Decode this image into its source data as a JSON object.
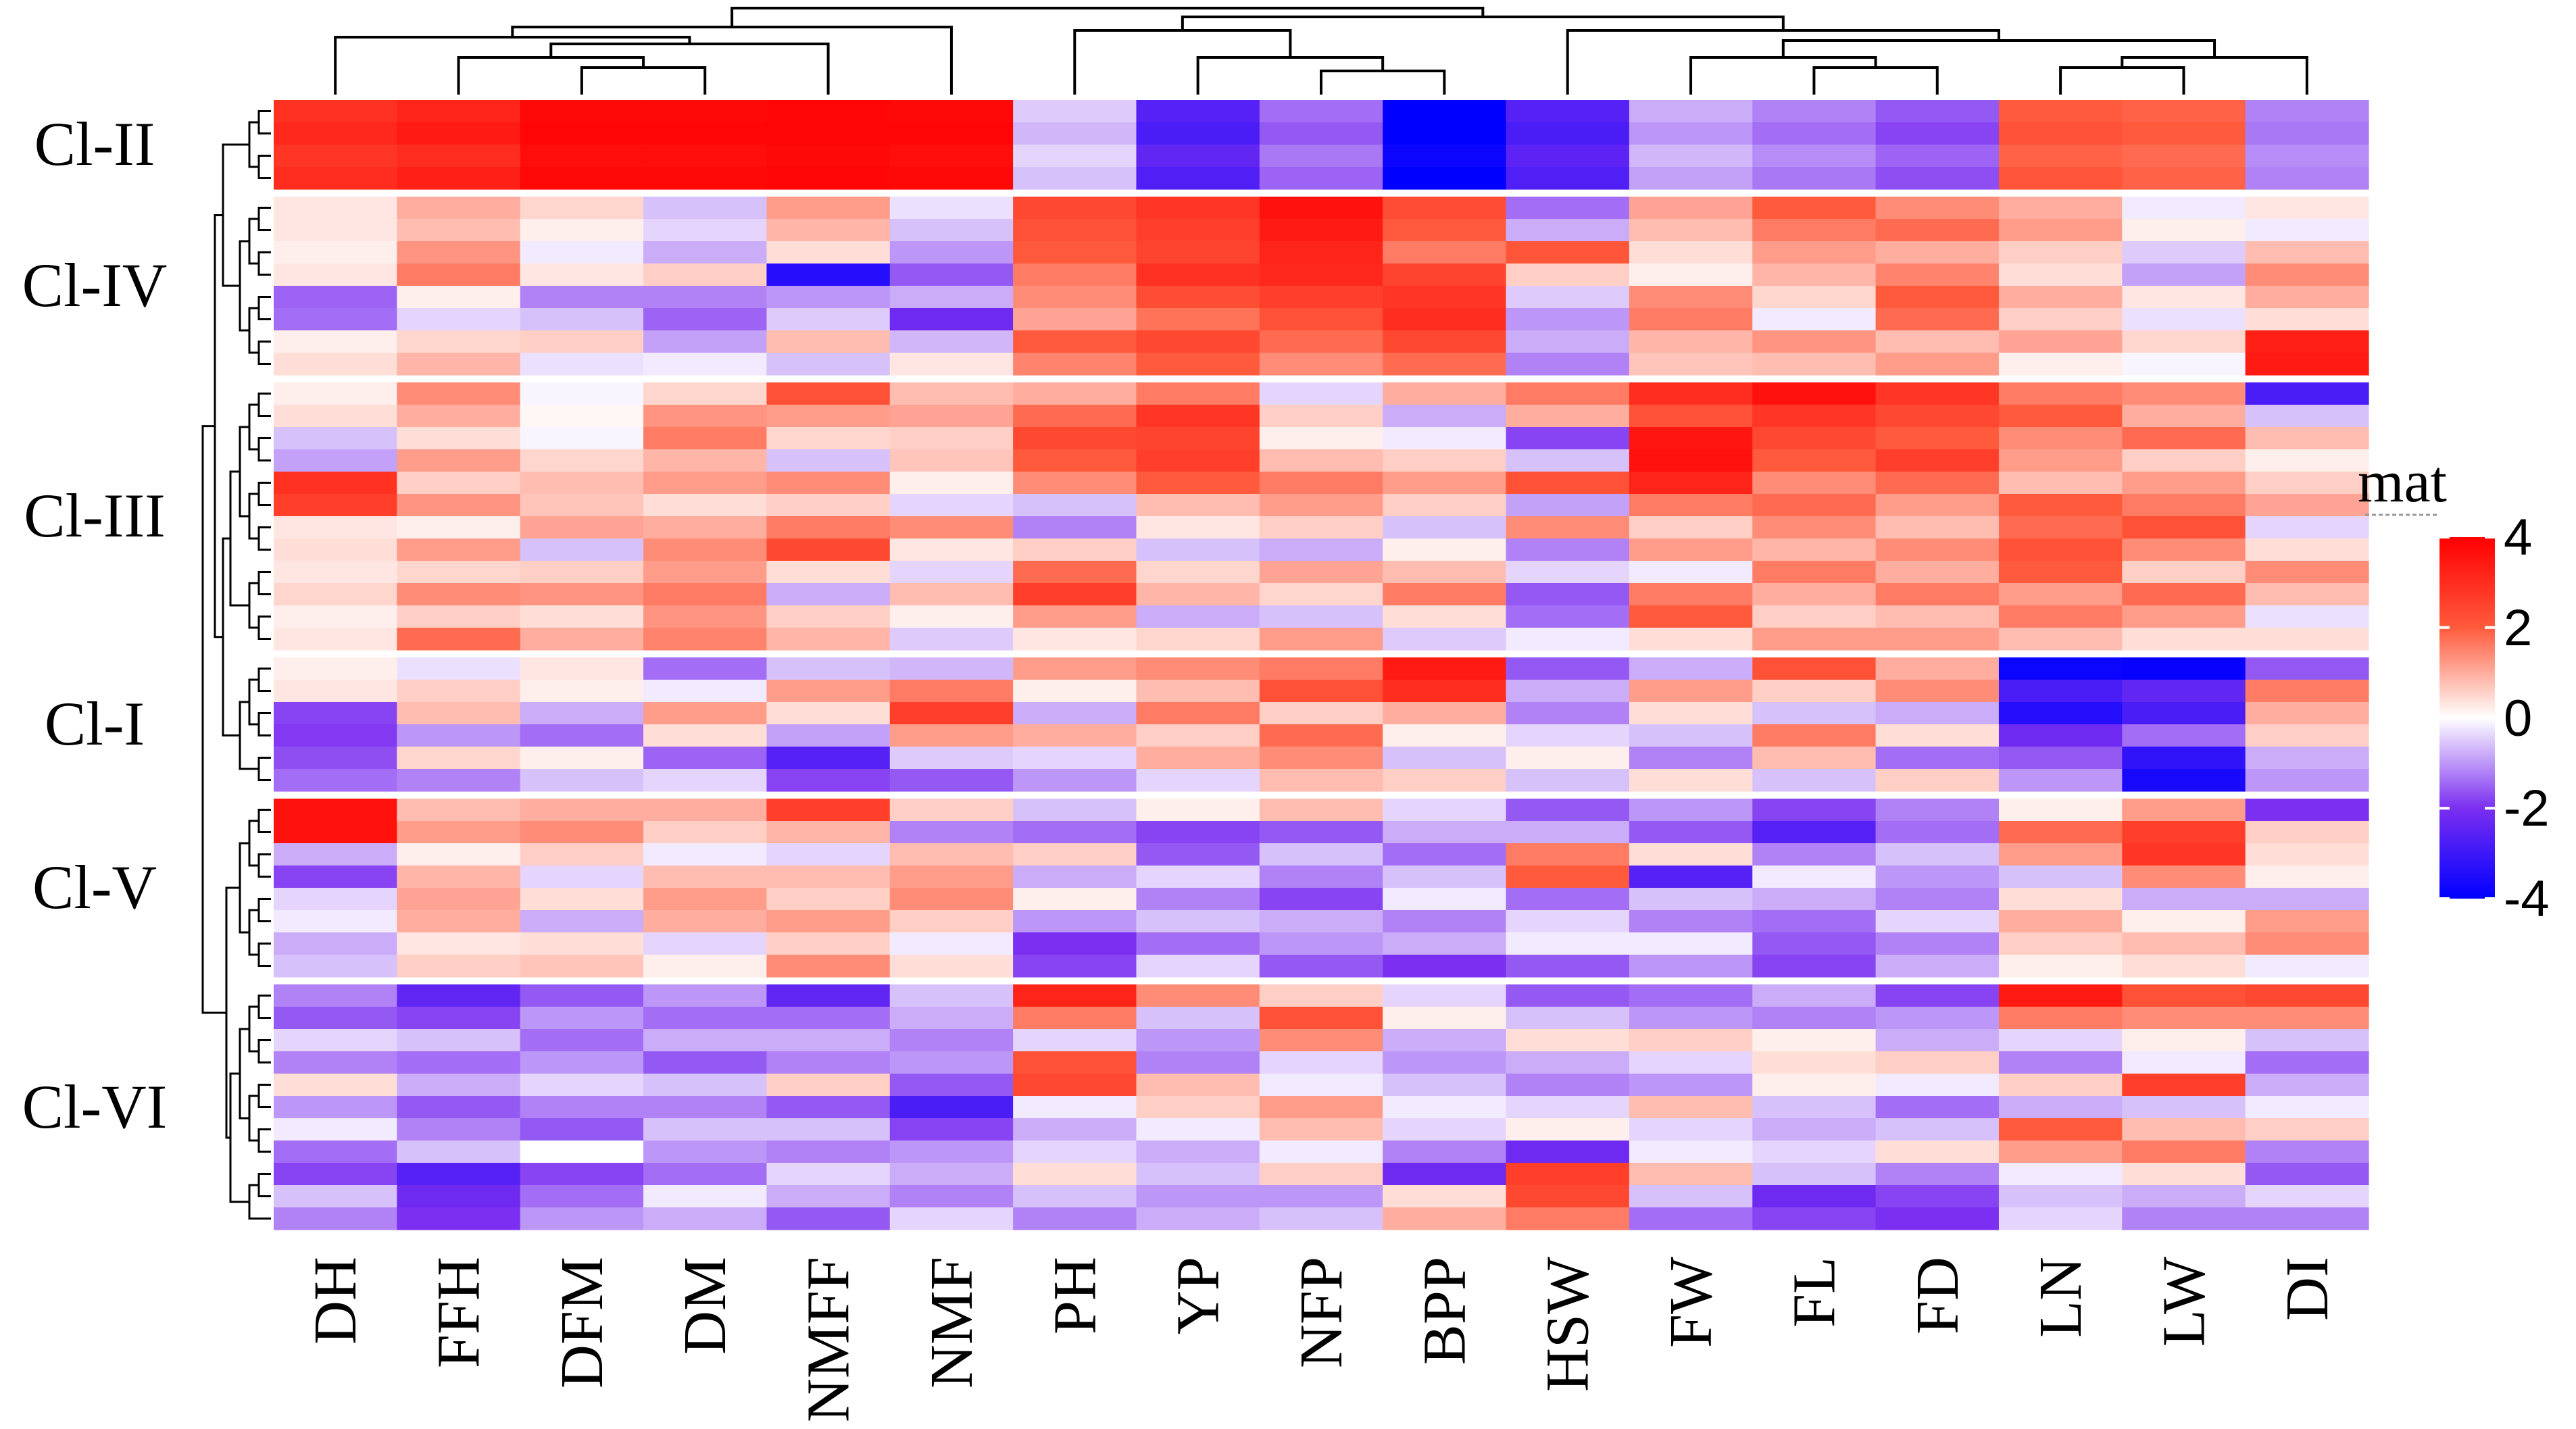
{
  "chart_data": {
    "type": "heatmap",
    "title": "",
    "xlabel": "",
    "ylabel": "",
    "columns": [
      "DH",
      "FFH",
      "DFM",
      "DM",
      "NMFF",
      "NMF",
      "PH",
      "YP",
      "NFP",
      "BPP",
      "HSW",
      "FW",
      "FL",
      "FD",
      "LN",
      "LW",
      "DI"
    ],
    "clusters": [
      {
        "label": "Cl-II",
        "rows": [
          [
            2.9,
            3.2,
            3.8,
            3.8,
            3.9,
            3.8,
            -0.5,
            -2.6,
            -1.4,
            -4.0,
            -2.6,
            -0.8,
            -1.2,
            -1.6,
            2.0,
            1.9,
            -1.2
          ],
          [
            3.1,
            3.4,
            3.9,
            3.9,
            3.9,
            3.9,
            -0.7,
            -2.8,
            -1.6,
            -4.2,
            -2.8,
            -1.0,
            -1.4,
            -1.8,
            2.2,
            2.0,
            -1.3
          ],
          [
            2.8,
            3.0,
            3.7,
            3.7,
            3.8,
            3.7,
            -0.4,
            -2.4,
            -1.3,
            -3.8,
            -2.5,
            -0.7,
            -1.1,
            -1.5,
            1.9,
            1.8,
            -1.1
          ],
          [
            3.0,
            3.3,
            3.8,
            3.8,
            3.9,
            3.8,
            -0.6,
            -2.7,
            -1.5,
            -4.0,
            -2.7,
            -0.9,
            -1.3,
            -1.7,
            2.1,
            1.9,
            -1.2
          ]
        ]
      },
      {
        "label": "Cl-IV",
        "rows": [
          [
            0.3,
            1.0,
            0.5,
            -0.6,
            1.2,
            -0.3,
            2.4,
            2.8,
            3.6,
            2.3,
            -1.4,
            1.1,
            2.0,
            1.4,
            1.0,
            -0.2,
            0.3
          ],
          [
            0.3,
            0.8,
            0.2,
            -0.4,
            0.9,
            -0.6,
            2.2,
            2.6,
            3.4,
            2.0,
            -0.8,
            0.8,
            1.6,
            1.8,
            1.2,
            0.2,
            -0.2
          ],
          [
            0.2,
            1.3,
            -0.2,
            -0.8,
            0.4,
            -1.0,
            2.0,
            2.5,
            3.2,
            1.6,
            2.1,
            0.4,
            1.2,
            1.0,
            0.6,
            -0.5,
            0.8
          ],
          [
            0.3,
            1.6,
            0.3,
            0.6,
            -3.4,
            -1.6,
            1.6,
            2.9,
            3.1,
            2.5,
            0.6,
            0.2,
            0.9,
            1.5,
            0.4,
            -0.9,
            1.4
          ],
          [
            -1.5,
            0.2,
            -1.2,
            -1.2,
            -1.0,
            -0.8,
            1.4,
            2.3,
            2.6,
            2.8,
            -0.5,
            1.4,
            0.5,
            2.0,
            1.0,
            0.3,
            1.0
          ],
          [
            -1.4,
            -0.4,
            -0.6,
            -1.5,
            -0.5,
            -2.2,
            1.1,
            1.7,
            2.2,
            3.0,
            -1.0,
            1.6,
            -0.2,
            1.8,
            0.6,
            -0.3,
            0.4
          ],
          [
            0.2,
            0.5,
            0.6,
            -0.9,
            0.8,
            -0.7,
            2.0,
            2.4,
            1.8,
            2.4,
            -0.8,
            0.9,
            1.3,
            0.8,
            1.1,
            0.5,
            3.3
          ],
          [
            0.4,
            0.9,
            -0.3,
            -0.2,
            -0.6,
            0.3,
            1.5,
            2.0,
            1.4,
            1.8,
            -1.2,
            0.7,
            0.8,
            1.2,
            0.2,
            -0.1,
            3.4
          ]
        ]
      },
      {
        "label": "Cl-III",
        "rows": [
          [
            0.2,
            1.4,
            -0.1,
            0.5,
            2.2,
            0.8,
            1.0,
            1.6,
            -0.4,
            1.0,
            1.6,
            3.0,
            3.6,
            2.8,
            1.6,
            1.4,
            -2.8
          ],
          [
            0.4,
            1.0,
            0.1,
            1.3,
            1.2,
            1.1,
            1.8,
            2.8,
            0.6,
            -0.8,
            1.0,
            2.2,
            2.8,
            2.4,
            2.0,
            1.0,
            -0.6
          ],
          [
            -0.6,
            0.4,
            -0.1,
            1.6,
            0.5,
            0.6,
            2.4,
            2.5,
            0.2,
            -0.2,
            -1.8,
            3.5,
            2.4,
            2.0,
            1.4,
            1.8,
            0.8
          ],
          [
            -0.9,
            1.2,
            0.5,
            0.9,
            -0.6,
            0.7,
            2.0,
            2.6,
            0.8,
            0.6,
            -0.6,
            3.6,
            2.0,
            2.6,
            1.2,
            0.6,
            0.2
          ],
          [
            2.9,
            0.6,
            0.8,
            1.2,
            1.4,
            0.2,
            1.4,
            2.0,
            1.6,
            1.2,
            2.2,
            3.2,
            1.4,
            1.8,
            0.8,
            1.2,
            0.6
          ],
          [
            2.6,
            1.3,
            0.7,
            0.4,
            0.6,
            -0.4,
            -0.6,
            0.8,
            1.2,
            0.6,
            -0.9,
            1.6,
            1.8,
            1.2,
            2.0,
            1.6,
            1.1
          ],
          [
            0.3,
            0.2,
            1.1,
            1.0,
            1.6,
            1.4,
            -1.2,
            0.3,
            0.6,
            -0.6,
            1.4,
            0.6,
            1.4,
            0.8,
            1.8,
            2.2,
            -0.4
          ],
          [
            0.4,
            1.2,
            -0.6,
            1.4,
            2.4,
            0.3,
            0.6,
            -0.6,
            -0.8,
            0.2,
            -1.2,
            1.2,
            0.9,
            1.4,
            2.2,
            1.4,
            0.4
          ],
          [
            0.3,
            0.5,
            0.6,
            1.2,
            0.4,
            -0.4,
            1.8,
            0.5,
            1.1,
            0.8,
            -0.4,
            -0.2,
            1.6,
            1.0,
            2.0,
            0.6,
            1.4
          ],
          [
            0.5,
            1.4,
            1.3,
            1.6,
            -0.8,
            0.8,
            2.6,
            0.9,
            0.5,
            1.6,
            -1.6,
            1.6,
            1.0,
            1.6,
            1.2,
            1.8,
            0.8
          ],
          [
            0.2,
            0.6,
            0.4,
            1.3,
            0.6,
            0.2,
            1.2,
            -0.8,
            -0.6,
            0.4,
            -1.4,
            2.0,
            0.6,
            0.8,
            1.6,
            1.2,
            -0.3
          ],
          [
            0.3,
            1.8,
            1.0,
            1.5,
            0.9,
            -0.5,
            0.3,
            0.5,
            1.2,
            -0.5,
            -0.2,
            0.4,
            1.2,
            1.2,
            0.8,
            0.4,
            0.4
          ]
        ]
      },
      {
        "label": "Cl-I",
        "rows": [
          [
            0.2,
            -0.3,
            0.3,
            -1.4,
            -0.6,
            -0.7,
            1.2,
            1.4,
            1.6,
            3.4,
            -1.6,
            -0.8,
            2.2,
            1.0,
            -3.8,
            -3.9,
            -1.6
          ],
          [
            0.3,
            0.6,
            0.2,
            -0.2,
            1.2,
            1.6,
            0.2,
            0.8,
            2.2,
            3.0,
            -0.8,
            1.2,
            0.6,
            1.4,
            -2.8,
            -2.4,
            1.6
          ],
          [
            -1.8,
            0.8,
            -0.8,
            1.2,
            0.4,
            2.6,
            -0.8,
            1.6,
            0.6,
            1.0,
            -1.2,
            0.4,
            -0.6,
            -0.8,
            -3.4,
            -2.8,
            1.0
          ],
          [
            -1.9,
            -1.0,
            -1.4,
            0.4,
            -0.9,
            1.2,
            1.0,
            0.6,
            1.8,
            0.2,
            -0.4,
            -0.6,
            1.6,
            0.4,
            -2.2,
            -1.4,
            0.6
          ],
          [
            -1.7,
            0.5,
            0.2,
            -1.5,
            -2.6,
            -0.5,
            -0.4,
            1.0,
            1.4,
            -0.6,
            0.2,
            -1.2,
            0.8,
            -1.4,
            -1.6,
            -3.2,
            -0.8
          ],
          [
            -1.4,
            -1.2,
            -0.6,
            -0.4,
            -1.8,
            -1.6,
            -1.0,
            -0.4,
            0.8,
            0.6,
            -0.6,
            0.4,
            -0.6,
            0.6,
            -1.0,
            -3.6,
            -1.0
          ]
        ]
      },
      {
        "label": "Cl-V",
        "rows": [
          [
            3.6,
            0.8,
            1.0,
            1.0,
            2.6,
            0.6,
            -0.6,
            0.2,
            0.8,
            -0.4,
            -1.6,
            -1.0,
            -1.8,
            -1.2,
            0.2,
            1.2,
            -2.0
          ],
          [
            3.6,
            1.2,
            1.4,
            0.6,
            0.9,
            -1.2,
            -1.4,
            -1.8,
            -1.6,
            -0.8,
            -0.8,
            -1.6,
            -2.6,
            -1.4,
            1.8,
            2.6,
            0.6
          ],
          [
            -0.8,
            0.2,
            0.6,
            -0.2,
            -0.4,
            0.8,
            0.6,
            -1.6,
            -0.6,
            -1.4,
            1.6,
            0.4,
            -1.2,
            -0.6,
            1.2,
            2.8,
            0.4
          ],
          [
            -1.8,
            0.9,
            -0.4,
            0.8,
            0.8,
            1.2,
            -0.8,
            -0.4,
            -1.2,
            -0.6,
            2.0,
            -2.6,
            -0.2,
            -1.0,
            -0.6,
            1.4,
            0.2
          ],
          [
            -0.4,
            1.1,
            0.4,
            1.2,
            0.6,
            1.4,
            0.2,
            -1.2,
            -1.8,
            -0.2,
            -1.4,
            -0.6,
            -0.8,
            -1.2,
            0.4,
            -0.8,
            -0.8
          ],
          [
            -0.2,
            1.0,
            -0.8,
            1.0,
            1.2,
            0.6,
            -1.0,
            -0.6,
            -0.8,
            -1.2,
            -0.4,
            -1.2,
            -1.4,
            -0.4,
            1.0,
            0.2,
            1.2
          ],
          [
            -0.8,
            0.3,
            0.4,
            -0.4,
            0.6,
            -0.2,
            -2.0,
            -1.4,
            -1.0,
            -0.8,
            -0.2,
            -0.2,
            -1.6,
            -1.2,
            0.6,
            0.8,
            1.4
          ],
          [
            -0.6,
            0.6,
            0.7,
            0.2,
            1.4,
            0.4,
            -1.8,
            -0.4,
            -1.6,
            -2.0,
            -1.6,
            -1.0,
            -1.8,
            -0.8,
            0.2,
            0.4,
            -0.2
          ]
        ]
      },
      {
        "label": "Cl-VI",
        "rows": [
          [
            -1.2,
            -2.4,
            -1.6,
            -1.0,
            -2.4,
            -0.6,
            3.2,
            1.4,
            0.6,
            -0.4,
            -1.6,
            -1.4,
            -0.8,
            -1.8,
            3.4,
            2.2,
            2.4
          ],
          [
            -1.6,
            -1.8,
            -1.0,
            -1.4,
            -1.4,
            -0.8,
            1.6,
            -0.6,
            2.2,
            0.2,
            -0.6,
            -1.0,
            -1.2,
            -1.0,
            1.6,
            1.4,
            1.4
          ],
          [
            -0.4,
            -0.6,
            -1.4,
            -0.8,
            -0.8,
            -1.2,
            -0.4,
            -1.0,
            1.4,
            -0.8,
            0.4,
            0.6,
            0.2,
            -0.8,
            -0.4,
            0.2,
            -0.6
          ],
          [
            -1.2,
            -1.4,
            -1.0,
            -1.6,
            -1.2,
            -1.0,
            2.2,
            -1.2,
            -0.4,
            -1.0,
            -0.8,
            -0.4,
            0.4,
            0.6,
            -1.2,
            -0.2,
            -1.4
          ],
          [
            0.4,
            -0.8,
            -0.4,
            -0.6,
            0.6,
            -1.6,
            2.4,
            0.8,
            -0.2,
            -0.6,
            -1.2,
            -1.0,
            0.2,
            -0.2,
            0.6,
            2.6,
            -0.8
          ],
          [
            -1.0,
            -1.6,
            -1.2,
            -1.2,
            -1.6,
            -2.8,
            -0.2,
            0.6,
            1.2,
            -0.2,
            -0.4,
            0.8,
            -0.6,
            -1.4,
            -0.8,
            -0.6,
            -0.2
          ],
          [
            -0.2,
            -1.2,
            -1.6,
            -0.6,
            -0.6,
            -1.8,
            -0.8,
            -0.2,
            0.8,
            -0.4,
            0.2,
            -0.4,
            -0.8,
            -0.6,
            2.0,
            0.8,
            0.6
          ],
          [
            -1.4,
            -0.6,
            0.0,
            -1.0,
            -1.2,
            -1.0,
            -0.4,
            -0.8,
            -0.2,
            -1.2,
            -2.2,
            -0.2,
            -0.4,
            0.4,
            1.2,
            1.6,
            -1.2
          ],
          [
            -1.8,
            -2.6,
            -1.8,
            -1.4,
            -0.4,
            -0.8,
            0.4,
            -0.6,
            0.6,
            -2.2,
            2.6,
            0.8,
            -0.6,
            -1.2,
            -0.2,
            0.4,
            -1.6
          ],
          [
            -0.6,
            -2.2,
            -1.4,
            -0.2,
            -0.8,
            -1.2,
            -0.6,
            -1.0,
            -1.0,
            0.4,
            2.4,
            -0.6,
            -2.2,
            -1.8,
            -0.6,
            -0.8,
            -0.4
          ],
          [
            -1.2,
            -2.0,
            -1.0,
            -0.8,
            -1.6,
            -0.4,
            -1.2,
            -0.8,
            -0.6,
            1.0,
            1.6,
            -1.4,
            -1.8,
            -2.0,
            -0.4,
            -1.2,
            -1.2
          ]
        ]
      }
    ],
    "legend": {
      "title": "mat",
      "ticks": [
        4,
        2,
        0,
        -2,
        -4
      ],
      "colors": {
        "low": "#0000ff",
        "mid": "#ffffff",
        "high": "#ff0000"
      },
      "position": "right"
    },
    "dendrogram": {
      "columns": "top",
      "rows": "left"
    }
  }
}
